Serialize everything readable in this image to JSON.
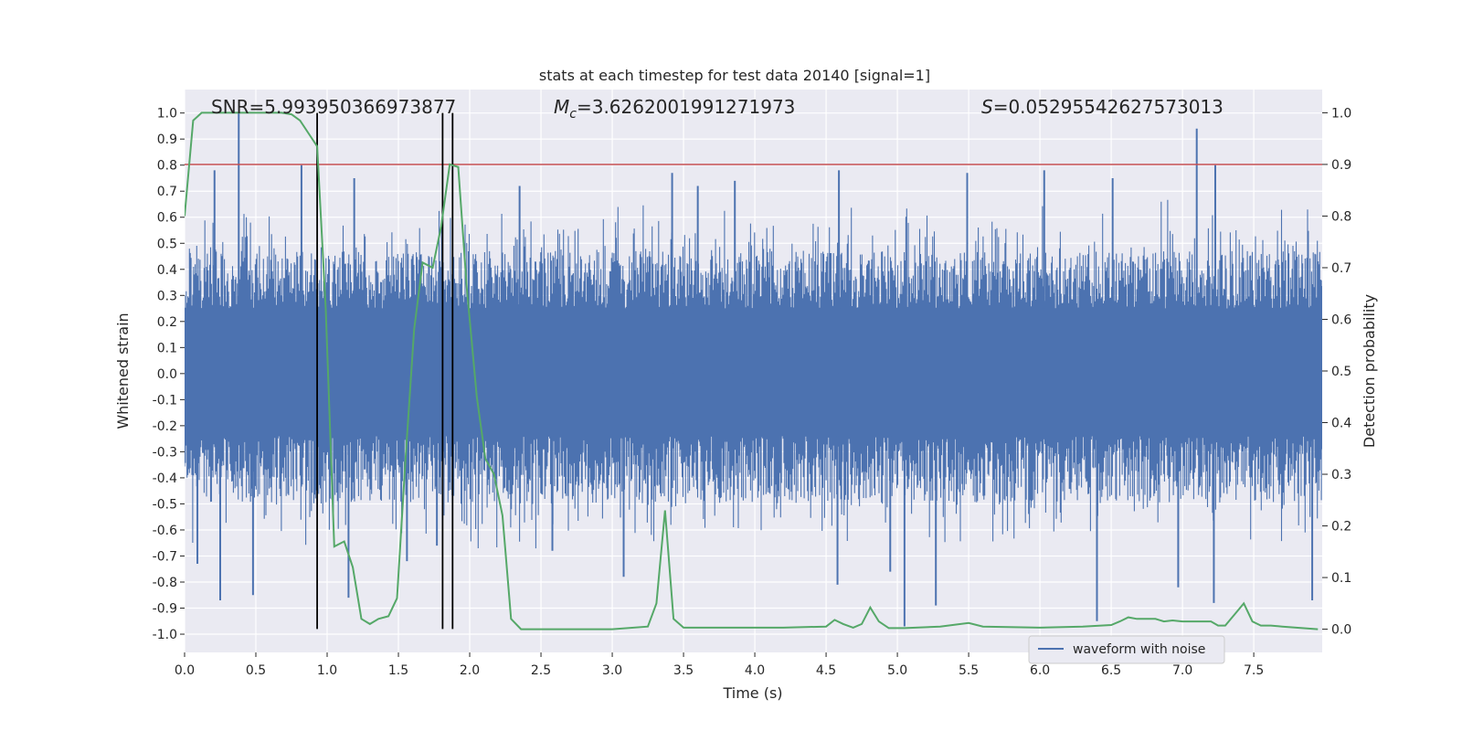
{
  "chart_data": {
    "type": "line",
    "title": "stats at each timestep for test data 20140 [signal=1]",
    "xlabel": "Time (s)",
    "ylabel": "Whitened strain",
    "ylabel_right": "Detection probability",
    "xlim": [
      0.0,
      7.98
    ],
    "ylim": [
      -1.07,
      1.09
    ],
    "ylim_right": [
      -0.045,
      1.045
    ],
    "x_ticks": [
      "0.0",
      "0.5",
      "1.0",
      "1.5",
      "2.0",
      "2.5",
      "3.0",
      "3.5",
      "4.0",
      "4.5",
      "5.0",
      "5.5",
      "6.0",
      "6.5",
      "7.0",
      "7.5"
    ],
    "y_ticks": [
      "1.0",
      "0.9",
      "0.8",
      "0.7",
      "0.6",
      "0.5",
      "0.4",
      "0.3",
      "0.2",
      "0.1",
      "0.0",
      "-0.1",
      "-0.2",
      "-0.3",
      "-0.4",
      "-0.5",
      "-0.6",
      "-0.7",
      "-0.8",
      "-0.9",
      "-1.0"
    ],
    "y_ticks_right": [
      "1.0",
      "0.9",
      "0.8",
      "0.7",
      "0.6",
      "0.5",
      "0.4",
      "0.3",
      "0.2",
      "0.1",
      "0.0"
    ],
    "annotations": {
      "snr": "SNR=5.993950366973877",
      "mc_symbol": "M",
      "mc_sub": "c",
      "mc_value": "=3.6262001991271973",
      "s_symbol": "S",
      "s_value": "=0.05295542627573013"
    },
    "legend": {
      "label": "waveform with noise",
      "placement": "lower-right"
    },
    "threshold_line": {
      "value": 0.9,
      "axis": "right",
      "color": "#c44e52"
    },
    "vertical_lines": {
      "x": [
        0.93,
        1.81,
        1.88
      ],
      "ymin": -0.98,
      "ymax": 1.0,
      "color": "#000000"
    },
    "waveform": {
      "name": "waveform with noise",
      "color": "#4c72b0",
      "core_band": [
        -0.24,
        0.25
      ],
      "envelope": [
        -0.5,
        0.47
      ],
      "peaks": [
        {
          "x": 0.38,
          "y": 1.0
        },
        {
          "x": 0.21,
          "y": 0.78
        },
        {
          "x": 0.82,
          "y": 0.8
        },
        {
          "x": 0.25,
          "y": -0.87
        },
        {
          "x": 0.48,
          "y": -0.85
        },
        {
          "x": 0.09,
          "y": -0.73
        },
        {
          "x": 1.19,
          "y": 0.75
        },
        {
          "x": 1.15,
          "y": -0.86
        },
        {
          "x": 1.56,
          "y": -0.72
        },
        {
          "x": 1.77,
          "y": -0.66
        },
        {
          "x": 2.58,
          "y": -0.68
        },
        {
          "x": 3.08,
          "y": -0.78
        },
        {
          "x": 3.42,
          "y": 0.77
        },
        {
          "x": 3.6,
          "y": 0.72
        },
        {
          "x": 4.58,
          "y": -0.81
        },
        {
          "x": 4.59,
          "y": 0.78
        },
        {
          "x": 5.05,
          "y": -0.97
        },
        {
          "x": 5.27,
          "y": -0.89
        },
        {
          "x": 6.4,
          "y": -0.95
        },
        {
          "x": 7.1,
          "y": 0.94
        },
        {
          "x": 7.23,
          "y": 0.8
        },
        {
          "x": 7.22,
          "y": -0.88
        },
        {
          "x": 7.91,
          "y": -0.87
        },
        {
          "x": 3.86,
          "y": 0.74
        },
        {
          "x": 4.95,
          "y": -0.76
        },
        {
          "x": 6.03,
          "y": 0.78
        },
        {
          "x": 6.51,
          "y": 0.75
        },
        {
          "x": 2.35,
          "y": 0.72
        },
        {
          "x": 5.49,
          "y": 0.77
        },
        {
          "x": 6.97,
          "y": -0.82
        }
      ]
    },
    "series": [
      {
        "name": "detection probability",
        "axis": "right",
        "color": "#55a868",
        "x": [
          0.0,
          0.06,
          0.12,
          0.18,
          0.25,
          0.31,
          0.37,
          0.43,
          0.5,
          0.56,
          0.62,
          0.68,
          0.75,
          0.81,
          0.87,
          0.93,
          0.99,
          1.05,
          1.12,
          1.18,
          1.24,
          1.3,
          1.36,
          1.43,
          1.49,
          1.55,
          1.61,
          1.67,
          1.74,
          1.8,
          1.86,
          1.92,
          1.98,
          2.05,
          2.11,
          2.17,
          2.23,
          2.29,
          2.36,
          2.6,
          3.0,
          3.25,
          3.31,
          3.37,
          3.43,
          3.5,
          3.6,
          3.8,
          4.2,
          4.5,
          4.56,
          4.62,
          4.69,
          4.75,
          4.81,
          4.87,
          4.94,
          5.05,
          5.3,
          5.5,
          5.6,
          6.0,
          6.3,
          6.5,
          6.56,
          6.62,
          6.68,
          6.75,
          6.81,
          6.87,
          6.93,
          7.0,
          7.2,
          7.25,
          7.3,
          7.37,
          7.43,
          7.49,
          7.55,
          7.62,
          7.7,
          7.95
        ],
        "values": [
          0.8,
          0.985,
          1.0,
          1.0,
          1.0,
          1.0,
          1.0,
          1.0,
          1.0,
          1.0,
          1.0,
          1.0,
          0.997,
          0.985,
          0.96,
          0.935,
          0.62,
          0.16,
          0.17,
          0.12,
          0.02,
          0.01,
          0.02,
          0.025,
          0.06,
          0.33,
          0.58,
          0.71,
          0.7,
          0.78,
          0.9,
          0.895,
          0.66,
          0.45,
          0.33,
          0.3,
          0.22,
          0.02,
          0.0,
          0.0,
          0.0,
          0.005,
          0.05,
          0.23,
          0.02,
          0.003,
          0.003,
          0.003,
          0.003,
          0.005,
          0.018,
          0.01,
          0.003,
          0.01,
          0.042,
          0.015,
          0.002,
          0.002,
          0.005,
          0.012,
          0.005,
          0.003,
          0.005,
          0.008,
          0.015,
          0.023,
          0.02,
          0.02,
          0.02,
          0.015,
          0.017,
          0.015,
          0.015,
          0.007,
          0.007,
          0.03,
          0.05,
          0.015,
          0.007,
          0.007,
          0.005,
          0.0
        ]
      }
    ]
  }
}
